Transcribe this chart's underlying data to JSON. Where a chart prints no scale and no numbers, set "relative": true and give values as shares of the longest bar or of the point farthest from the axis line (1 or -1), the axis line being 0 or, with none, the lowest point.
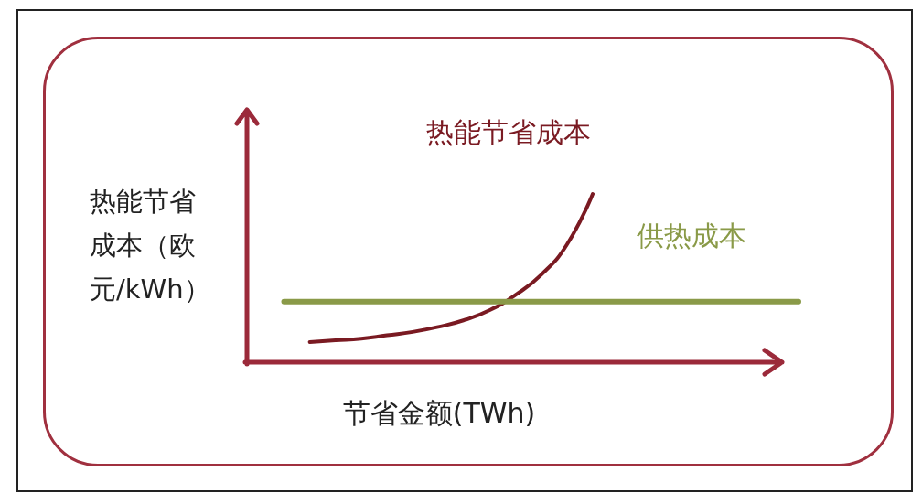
{
  "chart_data": {
    "type": "line",
    "relative": true,
    "xlabel": "节省金额(TWh)",
    "ylabel": "热能节省成本（欧元/kWh）",
    "marker": "none",
    "line_style": "solid",
    "categories": [
      null,
      null,
      null,
      null,
      null,
      null,
      null,
      null,
      null,
      null,
      null,
      null,
      null,
      null,
      null,
      null,
      null,
      null,
      null,
      null,
      null
    ],
    "series": [
      {
        "name": "热能节省成本",
        "color": "#7a1a22",
        "values": [
          null,
          0.12,
          0.13,
          0.14,
          0.16,
          0.18,
          0.21,
          0.25,
          0.31,
          0.4,
          0.52,
          0.7,
          1.0,
          null,
          null,
          null,
          null,
          null,
          null,
          null,
          null
        ]
      },
      {
        "name": "供热成本",
        "color": "#8a9a48",
        "values": [
          0.36,
          0.36,
          0.36,
          0.36,
          0.36,
          0.36,
          0.36,
          0.36,
          0.36,
          0.36,
          0.36,
          0.36,
          0.36,
          0.36,
          0.36,
          0.36,
          0.36,
          0.36,
          0.36,
          0.36,
          0.36
        ]
      }
    ]
  }
}
